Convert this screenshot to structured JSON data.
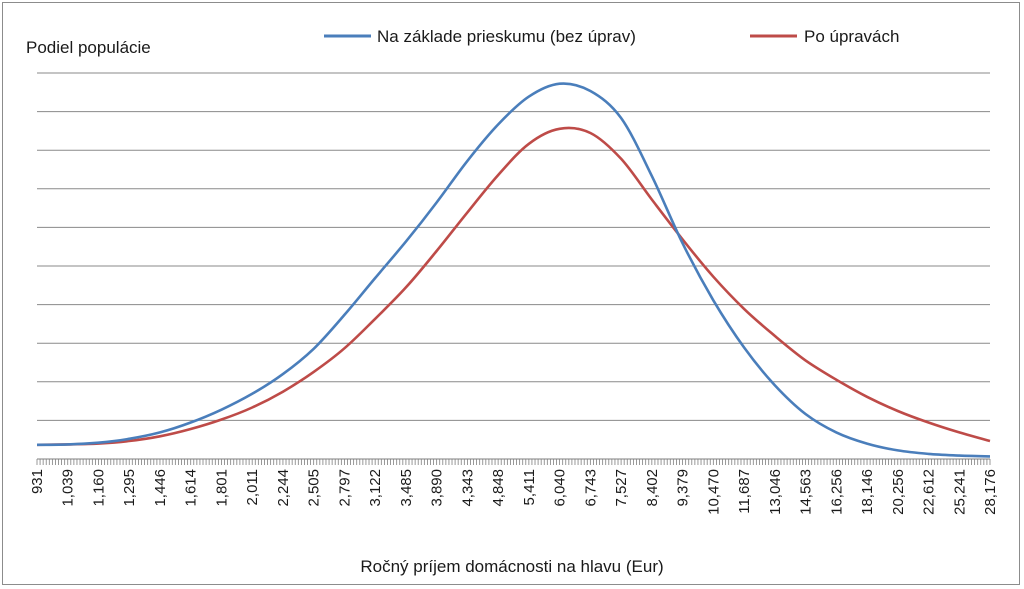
{
  "chart_data": {
    "type": "line",
    "title": "",
    "ylabel": "Podiel populácie",
    "xlabel": "Ročný príjem domácnosti na hlavu (Eur)",
    "x_tick_labels": [
      "931",
      "1,039",
      "1,160",
      "1,295",
      "1,446",
      "1,614",
      "1,801",
      "2,011",
      "2,244",
      "2,505",
      "2,797",
      "3,122",
      "3,485",
      "3,890",
      "4,343",
      "4,848",
      "5,411",
      "6,040",
      "6,743",
      "7,527",
      "8,402",
      "9,379",
      "10,470",
      "11,687",
      "13,046",
      "14,563",
      "16,256",
      "18,146",
      "20,256",
      "22,612",
      "25,241",
      "28,176"
    ],
    "ylim": [
      0,
      9
    ],
    "y_grid_count": 10,
    "grid": true,
    "y_tick_labels_shown": false,
    "legend_position": "top",
    "series": [
      {
        "name": "Na základe prieskumu (bez úprav)",
        "color": "#4a7ebb",
        "values": [
          0.33,
          0.34,
          0.38,
          0.47,
          0.62,
          0.85,
          1.15,
          1.52,
          1.98,
          2.57,
          3.36,
          4.22,
          5.07,
          5.98,
          6.95,
          7.8,
          8.45,
          8.75,
          8.58,
          7.95,
          6.6,
          5.03,
          3.7,
          2.6,
          1.72,
          1.05,
          0.62,
          0.36,
          0.2,
          0.12,
          0.08,
          0.06
        ]
      },
      {
        "name": "Po úpravách",
        "color": "#be4b48",
        "values": [
          0.33,
          0.34,
          0.36,
          0.42,
          0.53,
          0.7,
          0.92,
          1.2,
          1.57,
          2.03,
          2.58,
          3.27,
          4.0,
          4.85,
          5.75,
          6.62,
          7.35,
          7.7,
          7.6,
          7.0,
          6.05,
          5.12,
          4.25,
          3.5,
          2.87,
          2.3,
          1.85,
          1.45,
          1.12,
          0.85,
          0.62,
          0.42
        ]
      }
    ]
  }
}
